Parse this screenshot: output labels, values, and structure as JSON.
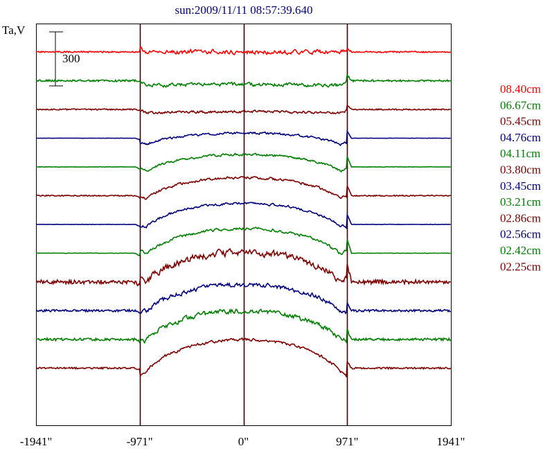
{
  "chart_data": {
    "type": "line",
    "title": "sun:2009/11/11 08:57:39.640",
    "ylabel": "Ta,V",
    "scale_bar_label": "300",
    "x_ticks": [
      -1941,
      -971,
      0,
      971,
      1941
    ],
    "x_tick_labels": [
      "-1941\"",
      "-971\"",
      "0\"",
      "971\"",
      "1941\""
    ],
    "xlim": [
      -1941,
      1941
    ],
    "vertical_lines": [
      -971,
      0,
      971
    ],
    "series": [
      {
        "name": "08.40cm",
        "color": "#ff0000",
        "baseline": 40,
        "limb_drop": 0,
        "limb_spike": 5,
        "center_rise": 0,
        "noise": 2.5,
        "edge_noise": 1.0,
        "seed": 11
      },
      {
        "name": "06.67cm",
        "color": "#008000",
        "baseline": 80,
        "limb_drop": 8,
        "limb_spike": 8,
        "center_rise": 3,
        "noise": 2.0,
        "edge_noise": 1.3,
        "seed": 22
      },
      {
        "name": "05.45cm",
        "color": "#800000",
        "baseline": 120,
        "limb_drop": 6,
        "limb_spike": 6,
        "center_rise": 3,
        "noise": 1.6,
        "edge_noise": 0.9,
        "seed": 33
      },
      {
        "name": "04.76cm",
        "color": "#000080",
        "baseline": 160,
        "limb_drop": 18,
        "limb_spike": 10,
        "center_rise": 30,
        "noise": 1.4,
        "edge_noise": 0.2,
        "seed": 44
      },
      {
        "name": "04.11cm",
        "color": "#008000",
        "baseline": 200,
        "limb_drop": 20,
        "limb_spike": 15,
        "center_rise": 45,
        "noise": 1.4,
        "edge_noise": 0.3,
        "seed": 55
      },
      {
        "name": "03.80cm",
        "color": "#800000",
        "baseline": 240,
        "limb_drop": 20,
        "limb_spike": 14,
        "center_rise": 54,
        "noise": 1.5,
        "edge_noise": 0.8,
        "seed": 66
      },
      {
        "name": "03.45cm",
        "color": "#000080",
        "baseline": 280,
        "limb_drop": 22,
        "limb_spike": 14,
        "center_rise": 62,
        "noise": 1.4,
        "edge_noise": 0.3,
        "seed": 77
      },
      {
        "name": "03.21cm",
        "color": "#008000",
        "baseline": 320,
        "limb_drop": 22,
        "limb_spike": 20,
        "center_rise": 68,
        "noise": 1.6,
        "edge_noise": 0.3,
        "seed": 88
      },
      {
        "name": "02.86cm",
        "color": "#800000",
        "baseline": 360,
        "limb_drop": 24,
        "limb_spike": 25,
        "center_rise": 78,
        "noise": 4.0,
        "edge_noise": 2.8,
        "seed": 99
      },
      {
        "name": "02.56cm",
        "color": "#000080",
        "baseline": 400,
        "limb_drop": 22,
        "limb_spike": 12,
        "center_rise": 70,
        "noise": 2.6,
        "edge_noise": 1.6,
        "seed": 111
      },
      {
        "name": "02.42cm",
        "color": "#008000",
        "baseline": 440,
        "limb_drop": 25,
        "limb_spike": 14,
        "center_rise": 78,
        "noise": 2.8,
        "edge_noise": 1.8,
        "seed": 122
      },
      {
        "name": "02.25cm",
        "color": "#800000",
        "baseline": 480,
        "limb_drop": 30,
        "limb_spike": 10,
        "center_rise": 84,
        "noise": 1.6,
        "edge_noise": 1.2,
        "seed": 133
      }
    ]
  }
}
